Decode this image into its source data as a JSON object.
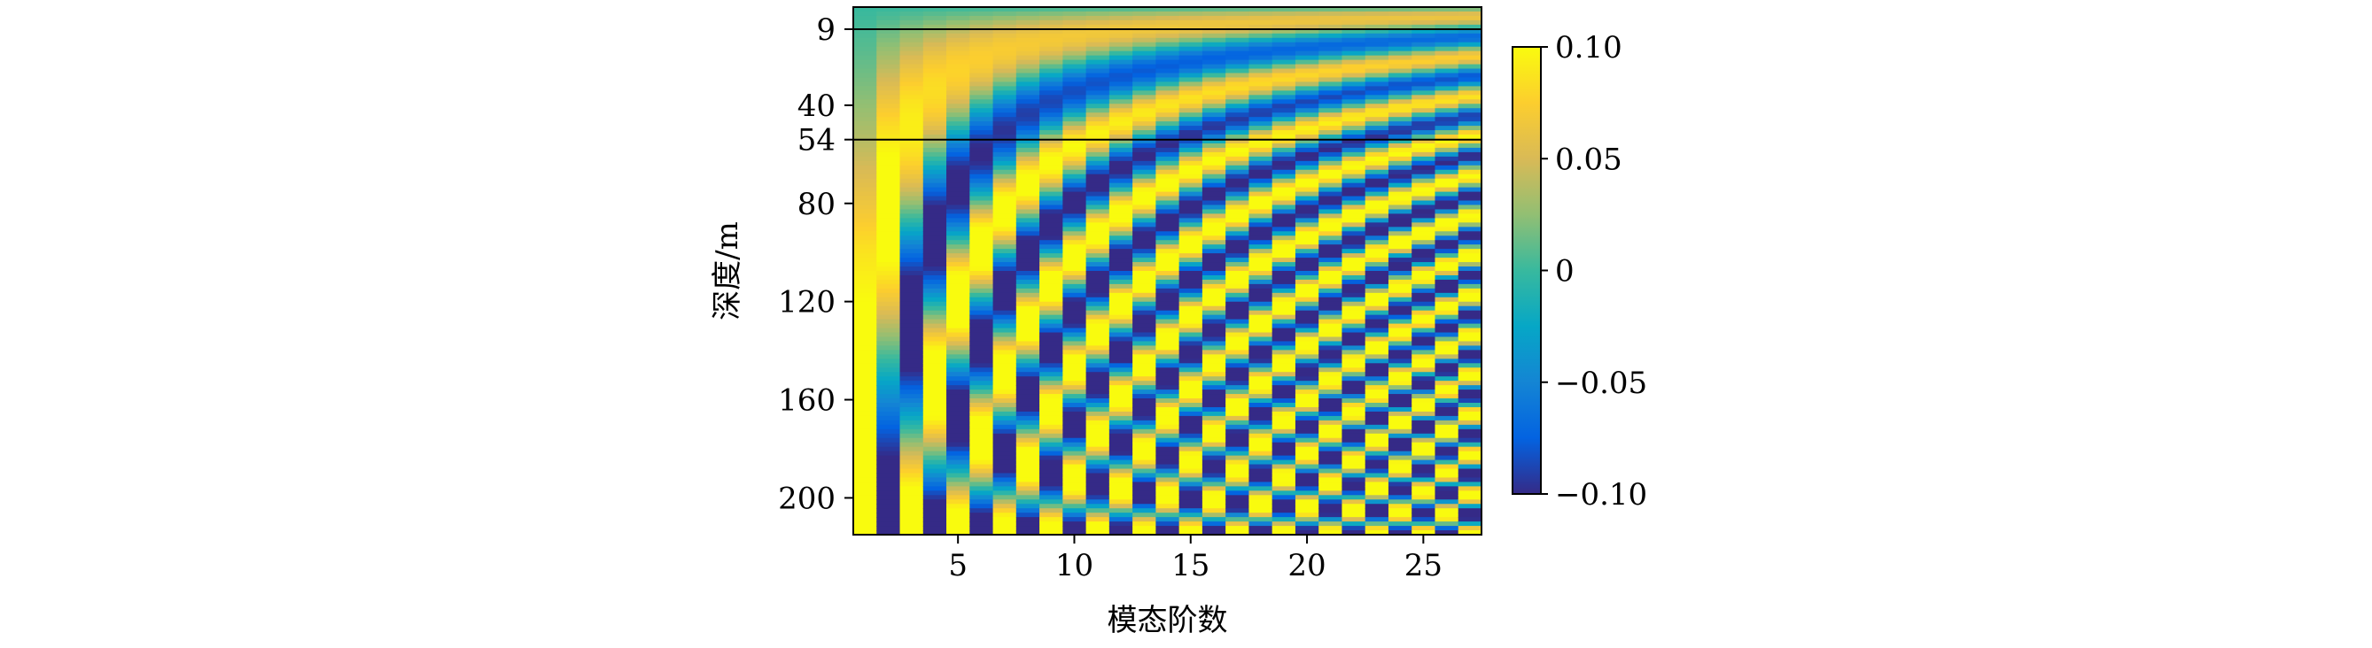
{
  "chart_data": {
    "type": "heatmap",
    "title": "",
    "xlabel": "模态阶数",
    "ylabel": "深度/m",
    "x_range": [
      0.5,
      27.5
    ],
    "y_range": [
      0,
      215
    ],
    "y_inverted": true,
    "x_ticks": [
      5,
      10,
      15,
      20,
      25
    ],
    "x_tick_labels": [
      "5",
      "10",
      "15",
      "20",
      "25"
    ],
    "y_ticks": [
      9,
      40,
      54,
      80,
      120,
      160,
      200
    ],
    "y_tick_labels": [
      "9",
      "40",
      "54",
      "80",
      "120",
      "160",
      "200"
    ],
    "horizontal_lines_at_depth": [
      9,
      54
    ],
    "modes": {
      "count": 27,
      "start": 1,
      "end": 27
    },
    "colorbar": {
      "range": [
        -0.1,
        0.1
      ],
      "ticks": [
        0.1,
        0.05,
        0,
        -0.05,
        -0.1
      ],
      "tick_labels": [
        "0.10",
        "0.05",
        "0",
        "−0.05",
        "−0.10"
      ],
      "colormap": "parula"
    },
    "colormap_stops": [
      "#352a87",
      "#0363e1",
      "#1485d4",
      "#06a7c6",
      "#38b99e",
      "#92bf73",
      "#d9ba56",
      "#fcce2e",
      "#f9fb0e"
    ],
    "line_color": "#000000",
    "grid": false,
    "legend": "none"
  }
}
